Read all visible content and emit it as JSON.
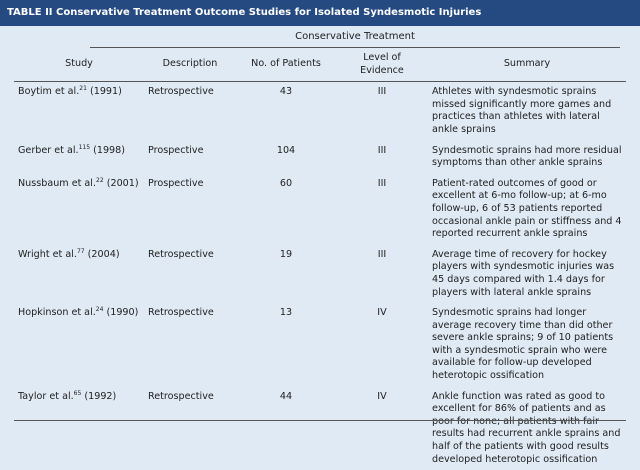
{
  "title_bar": {
    "label": "TABLE II",
    "title": "Conservative Treatment Outcome Studies for Isolated Syndesmotic Injuries"
  },
  "table": {
    "group_header": "Conservative Treatment",
    "columns": [
      "Study",
      "Description",
      "No. of Patients",
      "Level of Evidence",
      "Summary"
    ],
    "rows": [
      {
        "author": "Boytim et al.",
        "ref": "21",
        "year": "(1991)",
        "description": "Retrospective",
        "patients": 43,
        "evidence": "III",
        "summary": "Athletes with syndesmotic sprains missed significantly more games and practices than athletes with lateral ankle sprains"
      },
      {
        "author": "Gerber et al.",
        "ref": "115",
        "year": "(1998)",
        "description": "Prospective",
        "patients": 104,
        "evidence": "III",
        "summary": "Syndesmotic sprains had more residual symptoms than other ankle sprains"
      },
      {
        "author": "Nussbaum et al.",
        "ref": "22",
        "year": "(2001)",
        "description": "Prospective",
        "patients": 60,
        "evidence": "III",
        "summary": "Patient-rated outcomes of good or excellent at 6-mo follow-up; at 6-mo follow-up, 6 of 53 patients reported occasional ankle pain or stiffness and 4 reported recurrent ankle sprains"
      },
      {
        "author": "Wright et al.",
        "ref": "77",
        "year": "(2004)",
        "description": "Retrospective",
        "patients": 19,
        "evidence": "III",
        "summary": "Average time of recovery for hockey players with syndesmotic injuries was 45 days compared with 1.4 days for players with lateral ankle sprains"
      },
      {
        "author": "Hopkinson et al.",
        "ref": "24",
        "year": "(1990)",
        "description": "Retrospective",
        "patients": 13,
        "evidence": "IV",
        "summary": "Syndesmotic sprains had longer average recovery time than did other severe ankle sprains; 9 of 10 patients with a syndesmotic sprain who were available for follow-up developed heterotopic ossification"
      },
      {
        "author": "Taylor et al.",
        "ref": "65",
        "year": "(1992)",
        "description": "Retrospective",
        "patients": 44,
        "evidence": "IV",
        "summary": "Ankle function was rated as good to excellent for 86% of patients and as poor for none; all patients with fair results had recurrent ankle sprains and half of the patients with good results developed heterotopic ossification"
      }
    ]
  }
}
